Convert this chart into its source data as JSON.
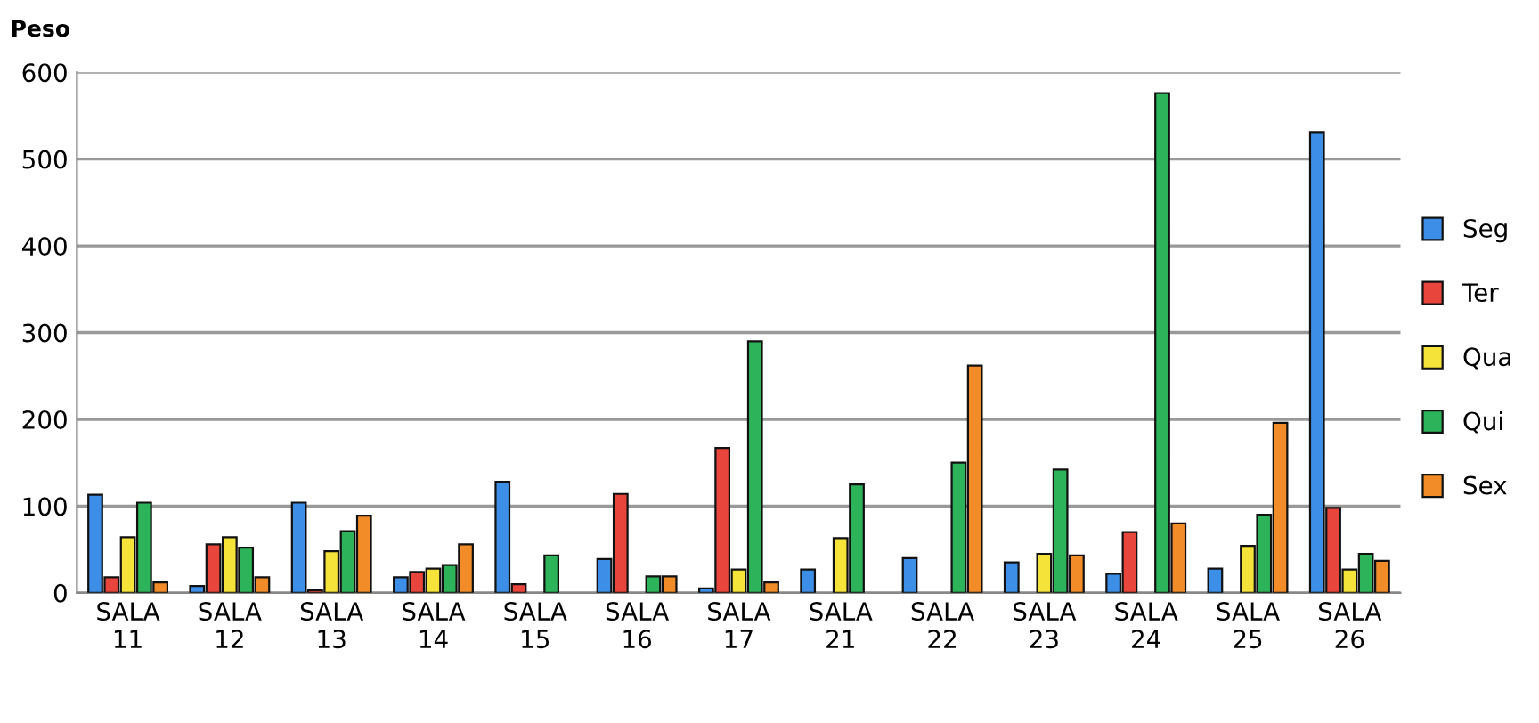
{
  "chart_data": {
    "type": "bar",
    "ylabel": "Peso",
    "categories": [
      "SALA\n11",
      "SALA\n12",
      "SALA\n13",
      "SALA\n14",
      "SALA\n15",
      "SALA\n16",
      "SALA\n17",
      "SALA\n21",
      "SALA\n22",
      "SALA\n23",
      "SALA\n24",
      "SALA\n25",
      "SALA\n26"
    ],
    "series": [
      {
        "name": "Seg",
        "color": "#3c8ee6",
        "values": [
          113,
          8,
          104,
          18,
          128,
          39,
          5,
          27,
          40,
          35,
          22,
          28,
          531
        ]
      },
      {
        "name": "Ter",
        "color": "#e8453c",
        "values": [
          18,
          56,
          3,
          24,
          10,
          114,
          167,
          0,
          0,
          0,
          70,
          0,
          98
        ]
      },
      {
        "name": "Qua",
        "color": "#f5e33a",
        "values": [
          64,
          64,
          48,
          28,
          0,
          0,
          27,
          63,
          0,
          45,
          0,
          54,
          27
        ]
      },
      {
        "name": "Qui",
        "color": "#2db45a",
        "values": [
          104,
          52,
          71,
          32,
          43,
          19,
          290,
          125,
          150,
          142,
          576,
          90,
          45
        ]
      },
      {
        "name": "Sex",
        "color": "#f28c28",
        "values": [
          12,
          18,
          89,
          56,
          0,
          19,
          12,
          0,
          262,
          43,
          80,
          196,
          37
        ]
      }
    ],
    "ylim": [
      0,
      600
    ],
    "yticks": [
      0,
      100,
      200,
      300,
      400,
      500,
      600
    ],
    "grid": "y",
    "legend": "right"
  }
}
